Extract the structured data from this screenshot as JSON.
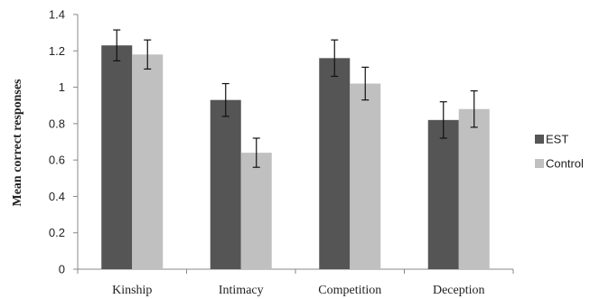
{
  "chart_data": {
    "type": "bar",
    "title": "",
    "xlabel": "",
    "ylabel": "Mean correct responses",
    "ylim": [
      0,
      1.4
    ],
    "yticks": [
      0,
      0.2,
      0.4,
      0.6,
      0.8,
      1,
      1.2,
      1.4
    ],
    "categories": [
      "Kinship",
      "Intimacy",
      "Competition",
      "Deception"
    ],
    "series": [
      {
        "name": "EST",
        "color": "#555555",
        "values": [
          1.23,
          0.93,
          1.16,
          0.82
        ],
        "errors": [
          0.085,
          0.09,
          0.1,
          0.1
        ]
      },
      {
        "name": "Control",
        "color": "#c0c0c0",
        "values": [
          1.18,
          0.64,
          1.02,
          0.88
        ],
        "errors": [
          0.08,
          0.08,
          0.09,
          0.1
        ]
      }
    ],
    "grid": false,
    "legend_position": "right"
  }
}
